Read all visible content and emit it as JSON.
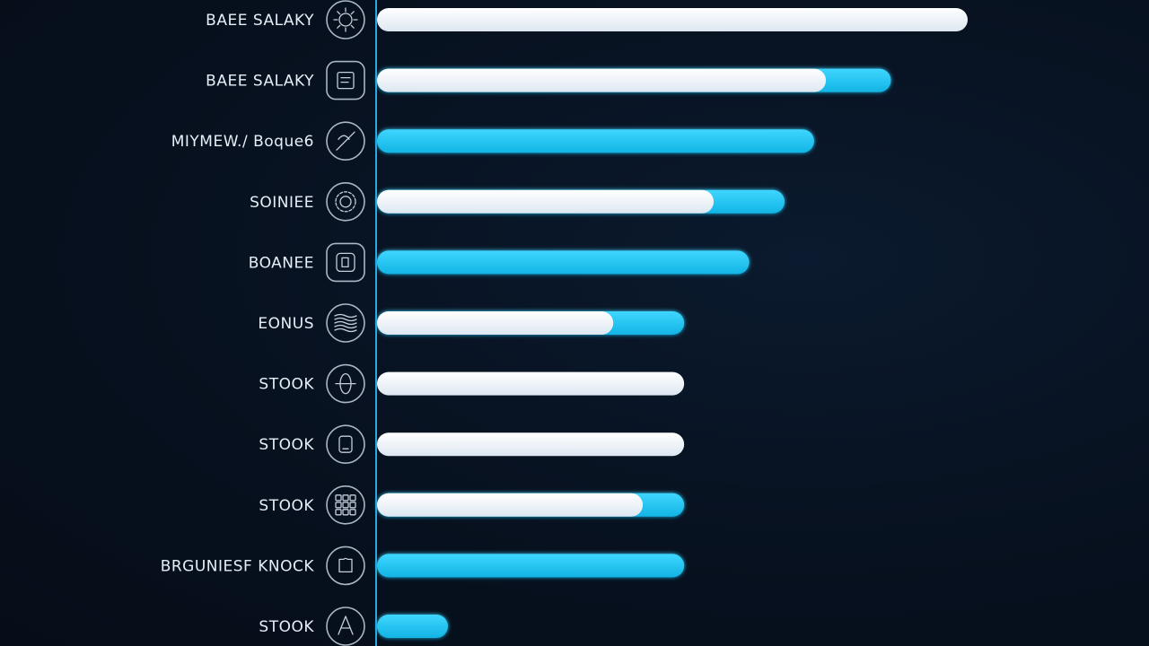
{
  "colors": {
    "background": "#07111f",
    "axis": "#2aa8e0",
    "bar_light": "#eef4fa",
    "bar_accent": "#1cc6f2",
    "label": "#e6eef7"
  },
  "chart_data": {
    "type": "bar",
    "orientation": "horizontal",
    "stacked": true,
    "title": "",
    "xlabel": "",
    "ylabel": "",
    "grid": false,
    "legend": "none",
    "xlim": [
      0,
      100
    ],
    "categories": [
      "BAEE SALAKY",
      "BAEE SALAKY",
      "MIYMEW./ Boque6",
      "SOINIEE",
      "BOANEE",
      "EONUS",
      "STOOK",
      "STOOK",
      "STOOK",
      "BRGUNIESF KNOCK",
      "STOOK"
    ],
    "icons": [
      "gear-circle-icon",
      "tablet-square-icon",
      "slash-circle-icon",
      "gear-badge-icon",
      "document-square-icon",
      "wave-stack-icon",
      "globe-circle-icon",
      "device-circle-icon",
      "grid-text-icon",
      "puzzle-circle-icon",
      "compass-circle-icon"
    ],
    "series": [
      {
        "color": "#eef4fa",
        "values": [
          100,
          76,
          0,
          57,
          0,
          40,
          52,
          52,
          45,
          0,
          0
        ]
      },
      {
        "color": "#1cc6f2",
        "values": [
          0,
          11,
          74,
          12,
          63,
          12,
          0,
          0,
          7,
          52,
          12
        ]
      }
    ]
  }
}
